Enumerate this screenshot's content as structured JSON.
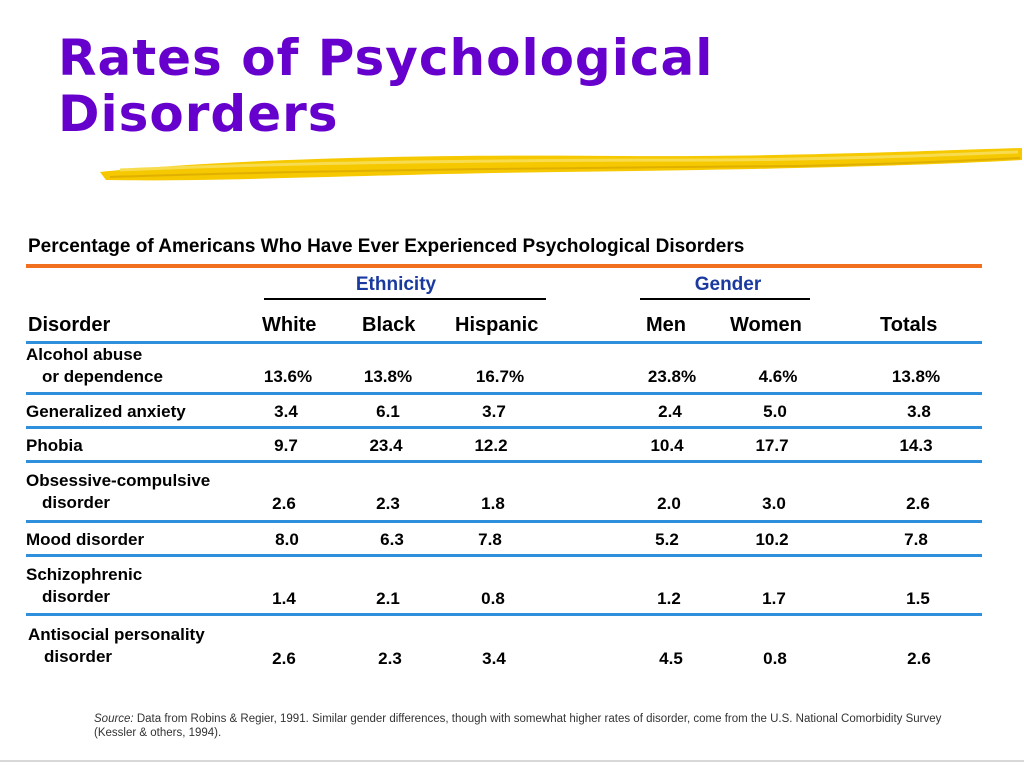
{
  "slide": {
    "title_line1": "Rates of Psychological",
    "title_line2": "Disorders",
    "title_color": "#6600cc",
    "highlight_color": "#f5c800"
  },
  "table": {
    "caption": "Percentage of Americans Who Have Ever Experienced Psychological Disorders",
    "groups": {
      "ethnicity": "Ethnicity",
      "gender": "Gender"
    },
    "headers": [
      "Disorder",
      "White",
      "Black",
      "Hispanic",
      "Men",
      "Women",
      "Totals"
    ],
    "rows": [
      {
        "name_line1": "Alcohol abuse",
        "name_line2": "or dependence",
        "values": [
          "13.6%",
          "13.8%",
          "16.7%",
          "23.8%",
          "4.6%",
          "13.8%"
        ]
      },
      {
        "name_line1": "Generalized anxiety",
        "name_line2": "",
        "values": [
          "3.4",
          "6.1",
          "3.7",
          "2.4",
          "5.0",
          "3.8"
        ]
      },
      {
        "name_line1": "Phobia",
        "name_line2": "",
        "values": [
          "9.7",
          "23.4",
          "12.2",
          "10.4",
          "17.7",
          "14.3"
        ]
      },
      {
        "name_line1": "Obsessive-compulsive",
        "name_line2": "disorder",
        "values": [
          "2.6",
          "2.3",
          "1.8",
          "2.0",
          "3.0",
          "2.6"
        ]
      },
      {
        "name_line1": "Mood disorder",
        "name_line2": "",
        "values": [
          "8.0",
          "6.3",
          "7.8",
          "5.2",
          "10.2",
          "7.8"
        ]
      },
      {
        "name_line1": "Schizophrenic",
        "name_line2": "disorder",
        "values": [
          "1.4",
          "2.1",
          "0.8",
          "1.2",
          "1.7",
          "1.5"
        ]
      },
      {
        "name_line1": "Antisocial personality",
        "name_line2": "disorder",
        "values": [
          "2.6",
          "2.3",
          "3.4",
          "4.5",
          "0.8",
          "2.6"
        ]
      }
    ],
    "accent_color": "#f07020",
    "row_rule_color": "#2e8fdc",
    "group_label_color": "#1a3aa0"
  },
  "source": {
    "label": "Source:",
    "text": "Data from Robins & Regier, 1991. Similar gender differences, though with somewhat higher rates of disorder, come from the U.S. National Comorbidity Survey (Kessler & others, 1994)."
  }
}
